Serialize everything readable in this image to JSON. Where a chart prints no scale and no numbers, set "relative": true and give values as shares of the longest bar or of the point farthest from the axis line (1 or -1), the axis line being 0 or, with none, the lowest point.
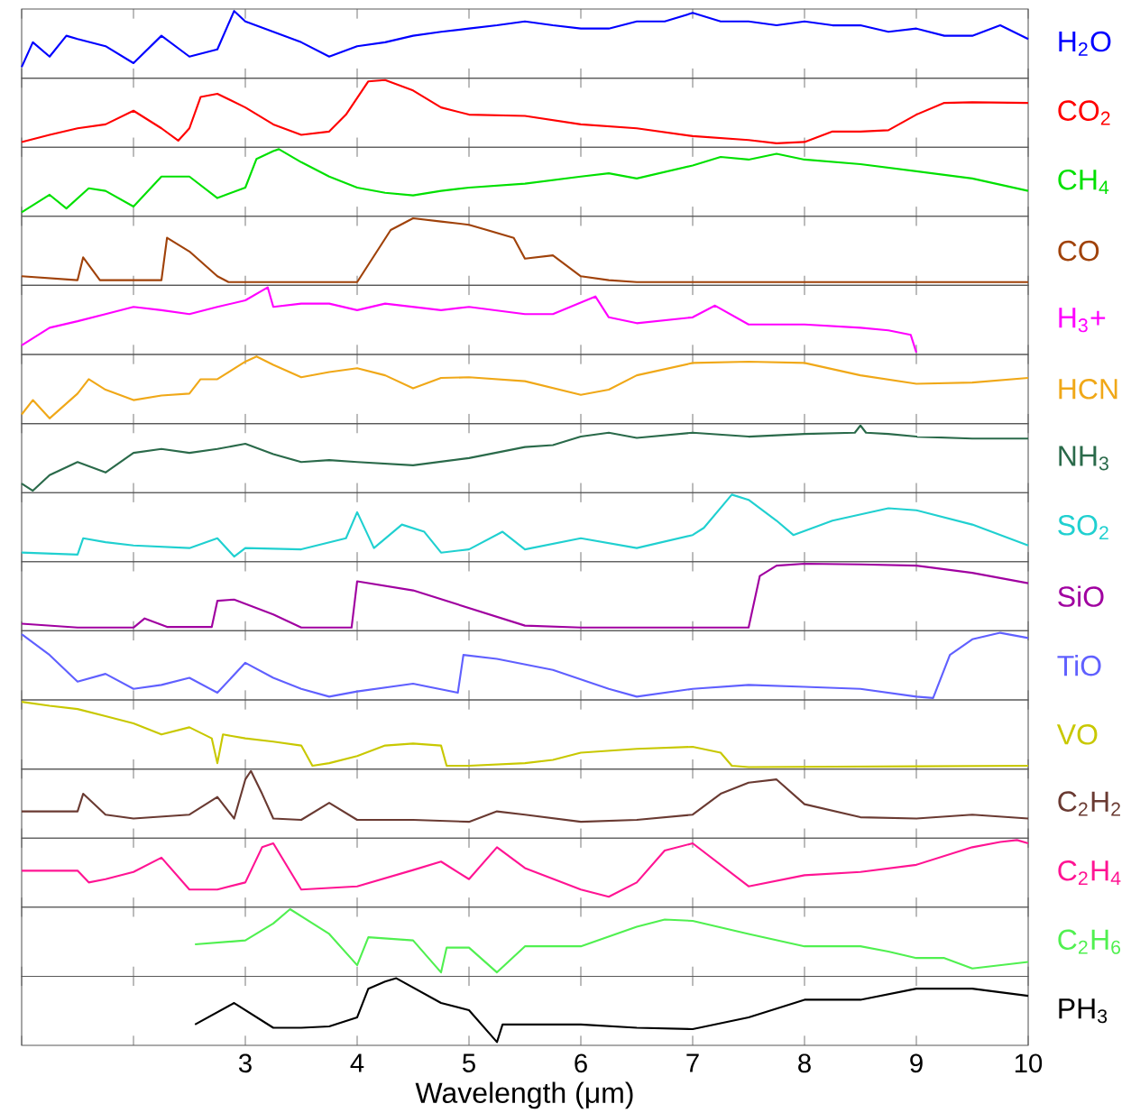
{
  "chart_data": [
    {
      "type": "line",
      "relative": true,
      "xlim": [
        1,
        10
      ],
      "xticks": [
        1,
        2,
        3,
        4,
        5,
        6,
        7,
        8,
        9,
        10
      ],
      "tick_labels": false,
      "series": [
        {
          "name": "H$_{2}$O",
          "color": "#0000ff",
          "x": [
            1.0,
            1.1,
            1.25,
            1.4,
            1.5,
            1.75,
            2.0,
            2.25,
            2.5,
            2.75,
            2.9,
            3.0,
            3.25,
            3.5,
            3.75,
            4.0,
            4.25,
            4.5,
            4.75,
            5.0,
            5.25,
            5.5,
            5.75,
            6.0,
            6.25,
            6.5,
            6.75,
            7.0,
            7.25,
            7.5,
            7.75,
            8.0,
            8.25,
            8.5,
            8.75,
            9.0,
            9.25,
            9.5,
            9.75,
            10.0
          ],
          "values": [
            0.14,
            0.52,
            0.3,
            0.62,
            0.57,
            0.46,
            0.2,
            0.62,
            0.3,
            0.41,
            1,
            0.84,
            0.68,
            0.52,
            0.3,
            0.46,
            0.52,
            0.62,
            0.68,
            0.73,
            0.78,
            0.84,
            0.78,
            0.73,
            0.73,
            0.84,
            0.84,
            0.97,
            0.84,
            0.84,
            0.78,
            0.84,
            0.78,
            0.78,
            0.68,
            0.73,
            0.62,
            0.62,
            0.78,
            0.57
          ]
        }
      ]
    },
    {
      "type": "line",
      "relative": true,
      "xlim": [
        1,
        10
      ],
      "xticks": [
        1,
        2,
        3,
        4,
        5,
        6,
        7,
        8,
        9,
        10
      ],
      "tick_labels": false,
      "series": [
        {
          "name": "CO$_{2}$",
          "color": "#ff0000",
          "x": [
            1.0,
            1.25,
            1.5,
            1.75,
            2.0,
            2.25,
            2.4,
            2.5,
            2.6,
            2.75,
            3.0,
            3.25,
            3.5,
            3.75,
            3.9,
            4.1,
            4.25,
            4.5,
            4.75,
            5.0,
            5.5,
            6.0,
            6.5,
            7.0,
            7.5,
            7.75,
            8.0,
            8.25,
            8.5,
            8.75,
            9.0,
            9.25,
            9.5,
            10.0
          ],
          "values": [
            0.05,
            0.16,
            0.26,
            0.32,
            0.53,
            0.26,
            0.07,
            0.26,
            0.74,
            0.79,
            0.58,
            0.32,
            0.16,
            0.21,
            0.47,
            0.98,
            1,
            0.84,
            0.58,
            0.47,
            0.45,
            0.32,
            0.26,
            0.14,
            0.08,
            0.03,
            0.05,
            0.21,
            0.21,
            0.23,
            0.47,
            0.65,
            0.66,
            0.65
          ]
        }
      ]
    },
    {
      "type": "line",
      "relative": true,
      "xlim": [
        1,
        10
      ],
      "xticks": [
        1,
        2,
        3,
        4,
        5,
        6,
        7,
        8,
        9,
        10
      ],
      "tick_labels": false,
      "series": [
        {
          "name": "CH$_{4}$",
          "color": "#00e000",
          "x": [
            1.0,
            1.25,
            1.4,
            1.6,
            1.75,
            2.0,
            2.25,
            2.5,
            2.75,
            3.0,
            3.1,
            3.25,
            3.3,
            3.5,
            3.75,
            4.0,
            4.25,
            4.5,
            4.75,
            5.0,
            5.5,
            6.0,
            6.25,
            6.5,
            7.0,
            7.25,
            7.5,
            7.75,
            8.0,
            8.5,
            9.0,
            9.5,
            10.0
          ],
          "values": [
            0.03,
            0.3,
            0.09,
            0.4,
            0.36,
            0.12,
            0.58,
            0.58,
            0.25,
            0.41,
            0.85,
            0.97,
            1,
            0.8,
            0.58,
            0.41,
            0.33,
            0.29,
            0.36,
            0.41,
            0.47,
            0.58,
            0.63,
            0.55,
            0.75,
            0.88,
            0.84,
            0.93,
            0.84,
            0.77,
            0.66,
            0.55,
            0.36
          ]
        }
      ]
    },
    {
      "type": "line",
      "relative": true,
      "xlim": [
        1,
        10
      ],
      "xticks": [
        1,
        2,
        3,
        4,
        5,
        6,
        7,
        8,
        9,
        10
      ],
      "tick_labels": false,
      "series": [
        {
          "name": "CO",
          "color": "#a0420a",
          "x": [
            1.0,
            1.5,
            1.55,
            1.7,
            2.25,
            2.3,
            2.5,
            2.75,
            2.85,
            3.0,
            4.0,
            4.3,
            4.5,
            4.75,
            5.0,
            5.4,
            5.5,
            5.75,
            6.0,
            6.25,
            6.5,
            10.0
          ],
          "values": [
            0.11,
            0.05,
            0.4,
            0.05,
            0.05,
            0.7,
            0.49,
            0.11,
            0.02,
            0.02,
            0.02,
            0.82,
            1,
            0.95,
            0.9,
            0.7,
            0.38,
            0.43,
            0.11,
            0.05,
            0.02,
            0.02
          ]
        }
      ]
    },
    {
      "type": "line",
      "relative": true,
      "xlim": [
        1,
        10
      ],
      "xticks": [
        1,
        2,
        3,
        4,
        5,
        6,
        7,
        8,
        9,
        10
      ],
      "tick_labels": false,
      "series": [
        {
          "name": "H$_{3}$+",
          "color": "#ff00ff",
          "x": [
            1.0,
            1.25,
            1.5,
            1.75,
            2.0,
            2.25,
            2.5,
            2.75,
            3.0,
            3.2,
            3.25,
            3.5,
            3.75,
            4.0,
            4.25,
            4.5,
            4.75,
            5.0,
            5.5,
            5.75,
            6.13,
            6.25,
            6.5,
            7.0,
            7.2,
            7.5,
            8.0,
            8.5,
            8.75,
            8.95,
            9.0
          ],
          "values": [
            0.11,
            0.38,
            0.48,
            0.59,
            0.7,
            0.65,
            0.59,
            0.7,
            0.8,
            1,
            0.7,
            0.75,
            0.75,
            0.65,
            0.75,
            0.7,
            0.65,
            0.7,
            0.59,
            0.59,
            0.86,
            0.54,
            0.45,
            0.54,
            0.72,
            0.43,
            0.43,
            0.38,
            0.34,
            0.27,
            0
          ]
        }
      ]
    },
    {
      "type": "line",
      "relative": true,
      "xlim": [
        1,
        10
      ],
      "xticks": [
        1,
        2,
        3,
        4,
        5,
        6,
        7,
        8,
        9,
        10
      ],
      "tick_labels": false,
      "series": [
        {
          "name": "HCN",
          "color": "#f0a818",
          "x": [
            1.0,
            1.1,
            1.25,
            1.5,
            1.6,
            1.75,
            2.0,
            2.25,
            2.5,
            2.6,
            2.75,
            3.0,
            3.1,
            3.25,
            3.5,
            3.75,
            4.0,
            4.25,
            4.5,
            4.75,
            5.0,
            5.5,
            6.0,
            6.25,
            6.5,
            7.0,
            7.5,
            8.0,
            8.5,
            9.0,
            9.5,
            10.0
          ],
          "values": [
            0.11,
            0.33,
            0.05,
            0.43,
            0.65,
            0.49,
            0.33,
            0.4,
            0.43,
            0.65,
            0.65,
            0.92,
            1,
            0.87,
            0.68,
            0.76,
            0.82,
            0.71,
            0.51,
            0.67,
            0.68,
            0.62,
            0.41,
            0.49,
            0.71,
            0.9,
            0.92,
            0.9,
            0.71,
            0.58,
            0.6,
            0.67
          ]
        }
      ]
    },
    {
      "type": "line",
      "relative": true,
      "xlim": [
        1,
        10
      ],
      "xticks": [
        1,
        2,
        3,
        4,
        5,
        6,
        7,
        8,
        9,
        10
      ],
      "tick_labels": false,
      "series": [
        {
          "name": "NH$_{3}$",
          "color": "#2a6a4a",
          "x": [
            1.0,
            1.1,
            1.25,
            1.5,
            1.75,
            2.0,
            2.25,
            2.5,
            2.75,
            3.0,
            3.25,
            3.5,
            3.75,
            4.0,
            4.5,
            5.0,
            5.5,
            5.75,
            6.0,
            6.25,
            6.5,
            7.0,
            7.5,
            8.0,
            8.45,
            8.5,
            8.55,
            8.75,
            9.0,
            9.5,
            10.0
          ],
          "values": [
            0.11,
            0,
            0.24,
            0.44,
            0.28,
            0.58,
            0.64,
            0.58,
            0.64,
            0.72,
            0.56,
            0.44,
            0.47,
            0.44,
            0.39,
            0.5,
            0.67,
            0.7,
            0.83,
            0.89,
            0.81,
            0.89,
            0.83,
            0.87,
            0.89,
            1,
            0.89,
            0.87,
            0.83,
            0.8,
            0.8
          ]
        }
      ]
    },
    {
      "type": "line",
      "relative": true,
      "xlim": [
        1,
        10
      ],
      "xticks": [
        1,
        2,
        3,
        4,
        5,
        6,
        7,
        8,
        9,
        10
      ],
      "tick_labels": false,
      "series": [
        {
          "name": "SO$_{2}$",
          "color": "#20d0d0",
          "x": [
            1.0,
            1.5,
            1.55,
            1.75,
            2.0,
            2.5,
            2.75,
            2.9,
            3.0,
            3.5,
            3.9,
            4.0,
            4.15,
            4.4,
            4.6,
            4.75,
            5.0,
            5.3,
            5.5,
            6.0,
            6.5,
            7.0,
            7.1,
            7.35,
            7.5,
            7.75,
            7.9,
            8.25,
            8.75,
            9.0,
            9.5,
            10.0
          ],
          "values": [
            0.11,
            0.08,
            0.33,
            0.27,
            0.22,
            0.18,
            0.33,
            0.05,
            0.18,
            0.16,
            0.33,
            0.73,
            0.18,
            0.54,
            0.43,
            0.11,
            0.16,
            0.43,
            0.16,
            0.33,
            0.18,
            0.38,
            0.49,
            1,
            0.92,
            0.6,
            0.38,
            0.6,
            0.79,
            0.76,
            0.54,
            0.22
          ]
        }
      ]
    },
    {
      "type": "line",
      "relative": true,
      "xlim": [
        1,
        10
      ],
      "xticks": [
        1,
        2,
        3,
        4,
        5,
        6,
        7,
        8,
        9,
        10
      ],
      "tick_labels": false,
      "series": [
        {
          "name": "SiO",
          "color": "#a000a0",
          "x": [
            1.0,
            1.5,
            2.0,
            2.1,
            2.3,
            2.7,
            2.75,
            2.9,
            3.25,
            3.5,
            3.95,
            4.0,
            4.5,
            5.0,
            5.5,
            6.0,
            7.5,
            7.6,
            7.75,
            8.0,
            8.5,
            9.0,
            9.5,
            10.0
          ],
          "values": [
            0.08,
            0.02,
            0.02,
            0.16,
            0.03,
            0.03,
            0.43,
            0.45,
            0.22,
            0.02,
            0.02,
            0.73,
            0.59,
            0.32,
            0.05,
            0.02,
            0.02,
            0.81,
            0.97,
            1,
            0.99,
            0.97,
            0.86,
            0.7
          ]
        }
      ]
    },
    {
      "type": "line",
      "relative": true,
      "xlim": [
        1,
        10
      ],
      "xticks": [
        1,
        2,
        3,
        4,
        5,
        6,
        7,
        8,
        9,
        10
      ],
      "tick_labels": false,
      "series": [
        {
          "name": "TiO",
          "color": "#6060ff",
          "x": [
            1.0,
            1.25,
            1.5,
            1.75,
            2.0,
            2.25,
            2.5,
            2.75,
            3.0,
            3.25,
            3.5,
            3.75,
            4.0,
            4.5,
            4.9,
            4.95,
            5.25,
            5.75,
            6.25,
            6.5,
            7.0,
            7.5,
            8.0,
            8.5,
            9.0,
            9.15,
            9.3,
            9.5,
            9.75,
            10.0
          ],
          "values": [
            0.98,
            0.66,
            0.25,
            0.37,
            0.14,
            0.2,
            0.31,
            0.08,
            0.54,
            0.31,
            0.14,
            0.02,
            0.1,
            0.22,
            0.08,
            0.66,
            0.6,
            0.43,
            0.14,
            0.02,
            0.14,
            0.2,
            0.17,
            0.14,
            0.02,
            0,
            0.66,
            0.9,
            1,
            0.92
          ]
        }
      ]
    },
    {
      "type": "line",
      "relative": true,
      "xlim": [
        1,
        10
      ],
      "xticks": [
        1,
        2,
        3,
        4,
        5,
        6,
        7,
        8,
        9,
        10
      ],
      "tick_labels": false,
      "series": [
        {
          "name": "VO",
          "color": "#c8c800",
          "x": [
            1.0,
            1.25,
            1.5,
            1.75,
            2.0,
            2.25,
            2.5,
            2.7,
            2.75,
            2.8,
            3.0,
            3.25,
            3.5,
            3.6,
            3.75,
            4.0,
            4.25,
            4.5,
            4.75,
            4.8,
            5.0,
            5.5,
            5.75,
            6.0,
            6.5,
            7.0,
            7.25,
            7.35,
            7.5,
            10.0
          ],
          "values": [
            1,
            0.94,
            0.89,
            0.78,
            0.67,
            0.5,
            0.61,
            0.44,
            0.06,
            0.5,
            0.44,
            0.39,
            0.33,
            0.02,
            0.06,
            0.17,
            0.33,
            0.36,
            0.33,
            0.02,
            0.02,
            0.06,
            0.11,
            0.22,
            0.28,
            0.31,
            0.22,
            0.02,
            0,
            0.02
          ]
        }
      ]
    },
    {
      "type": "line",
      "relative": true,
      "xlim": [
        1,
        10
      ],
      "xticks": [
        1,
        2,
        3,
        4,
        5,
        6,
        7,
        8,
        9,
        10
      ],
      "tick_labels": false,
      "series": [
        {
          "name": "C$_{2}$H$_{2}$",
          "color": "#6a3a32",
          "x": [
            1.0,
            1.5,
            1.55,
            1.75,
            2.0,
            2.5,
            2.75,
            2.9,
            3.0,
            3.05,
            3.15,
            3.25,
            3.5,
            3.75,
            4.0,
            4.5,
            5.0,
            5.25,
            5.5,
            6.0,
            6.5,
            7.0,
            7.25,
            7.5,
            7.75,
            8.0,
            8.5,
            9.0,
            9.5,
            10.0
          ],
          "values": [
            0.38,
            0.38,
            0.65,
            0.33,
            0.27,
            0.33,
            0.6,
            0.27,
            0.87,
            1,
            0.65,
            0.27,
            0.25,
            0.51,
            0.25,
            0.25,
            0.22,
            0.38,
            0.33,
            0.22,
            0.25,
            0.33,
            0.65,
            0.82,
            0.87,
            0.49,
            0.29,
            0.27,
            0.33,
            0.27
          ]
        }
      ]
    },
    {
      "type": "line",
      "relative": true,
      "xlim": [
        1,
        10
      ],
      "xticks": [
        1,
        2,
        3,
        4,
        5,
        6,
        7,
        8,
        9,
        10
      ],
      "tick_labels": false,
      "series": [
        {
          "name": "C$_{2}$H$_{4}$",
          "color": "#ff1493",
          "x": [
            1.0,
            1.5,
            1.6,
            1.75,
            2.0,
            2.25,
            2.5,
            2.75,
            3.0,
            3.15,
            3.25,
            3.5,
            4.0,
            4.5,
            4.75,
            5.0,
            5.25,
            5.5,
            6.0,
            6.25,
            6.5,
            6.75,
            7.0,
            7.5,
            8.0,
            8.5,
            9.0,
            9.5,
            9.75,
            9.9,
            10.0
          ],
          "values": [
            0.53,
            0.53,
            0.35,
            0.4,
            0.51,
            0.73,
            0.24,
            0.24,
            0.35,
            0.89,
            0.95,
            0.24,
            0.29,
            0.54,
            0.67,
            0.4,
            0.89,
            0.57,
            0.24,
            0.13,
            0.35,
            0.84,
            0.95,
            0.29,
            0.46,
            0.51,
            0.62,
            0.89,
            0.97,
            1,
            0.95
          ]
        }
      ]
    },
    {
      "type": "line",
      "relative": true,
      "xlim": [
        1,
        10
      ],
      "xticks": [
        1,
        2,
        3,
        4,
        5,
        6,
        7,
        8,
        9,
        10
      ],
      "tick_labels": false,
      "series": [
        {
          "name": "C$_{2}$H$_{6}$",
          "color": "#50f050",
          "x": [
            2.55,
            3.0,
            3.25,
            3.4,
            3.75,
            4.0,
            4.1,
            4.5,
            4.75,
            4.8,
            5.0,
            5.25,
            5.5,
            6.0,
            6.5,
            6.75,
            7.0,
            7.5,
            8.0,
            8.5,
            8.75,
            9.0,
            9.25,
            9.5,
            10.0
          ],
          "values": [
            0.46,
            0.52,
            0.78,
            1,
            0.62,
            0.14,
            0.57,
            0.52,
            0.03,
            0.41,
            0.41,
            0.03,
            0.43,
            0.43,
            0.73,
            0.84,
            0.82,
            0.62,
            0.43,
            0.43,
            0.35,
            0.25,
            0.25,
            0.09,
            0.19
          ]
        }
      ]
    },
    {
      "type": "line",
      "relative": true,
      "xlim": [
        1,
        10
      ],
      "xticks": [
        {
          "value": 1,
          "label": null
        },
        {
          "value": 2,
          "label": null
        },
        3,
        4,
        5,
        6,
        7,
        8,
        9,
        10
      ],
      "tick_labels": "x",
      "xlabel": "Wavelength (μm)",
      "series": [
        {
          "name": "PH$_{3}$",
          "color": "#000000",
          "x": [
            2.55,
            2.9,
            3.25,
            3.5,
            3.75,
            4.0,
            4.1,
            4.25,
            4.35,
            4.75,
            5.0,
            5.25,
            5.3,
            6.0,
            6.5,
            7.0,
            7.5,
            8.0,
            8.5,
            9.0,
            9.5,
            10.0
          ],
          "values": [
            0.29,
            0.62,
            0.24,
            0.24,
            0.26,
            0.4,
            0.84,
            0.95,
            1,
            0.62,
            0.51,
            0.02,
            0.29,
            0.29,
            0.24,
            0.22,
            0.4,
            0.67,
            0.67,
            0.84,
            0.84,
            0.73
          ]
        }
      ]
    }
  ]
}
